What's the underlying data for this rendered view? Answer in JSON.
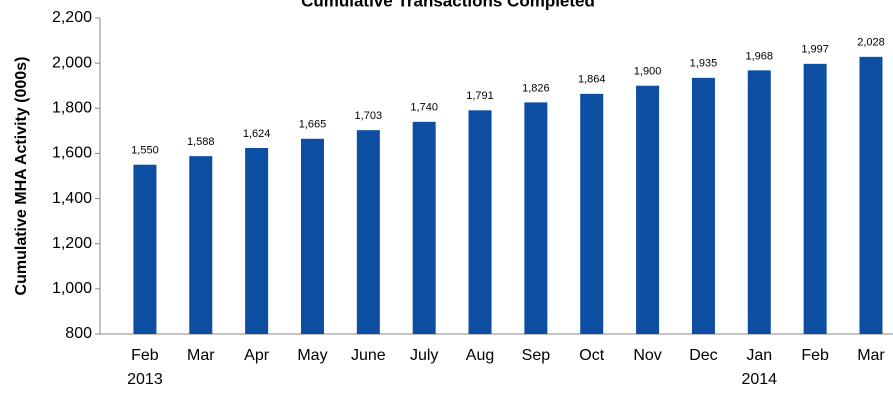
{
  "chart_data": {
    "type": "bar",
    "title": "Cumulative Transactions Completed",
    "y_label": "Cumulative MHA Activity (000s)",
    "categories": [
      "Feb",
      "Mar",
      "Apr",
      "May",
      "June",
      "July",
      "Aug",
      "Sep",
      "Oct",
      "Nov",
      "Dec",
      "Jan",
      "Feb",
      "Mar"
    ],
    "category_years": [
      "2013",
      null,
      null,
      null,
      null,
      null,
      null,
      null,
      null,
      null,
      null,
      "2014",
      null,
      null
    ],
    "values": [
      1550,
      1588,
      1624,
      1665,
      1703,
      1740,
      1791,
      1826,
      1864,
      1900,
      1935,
      1968,
      1997,
      2028
    ],
    "value_labels": [
      "1,550",
      "1,588",
      "1,624",
      "1,665",
      "1,703",
      "1,740",
      "1,791",
      "1,826",
      "1,864",
      "1,900",
      "1,935",
      "1,968",
      "1,997",
      "2,028"
    ],
    "color": "#0b4ea2",
    "ylim": [
      800,
      2200
    ],
    "yticks": [
      {
        "value": 800,
        "label": "800"
      },
      {
        "value": 1000,
        "label": "1,000"
      },
      {
        "value": 1200,
        "label": "1,200"
      },
      {
        "value": 1400,
        "label": "1,400"
      },
      {
        "value": 1600,
        "label": "1,600"
      },
      {
        "value": 1800,
        "label": "1,800"
      },
      {
        "value": 2000,
        "label": "2,000"
      },
      {
        "value": 2200,
        "label": "2,200"
      }
    ],
    "grid": false
  }
}
